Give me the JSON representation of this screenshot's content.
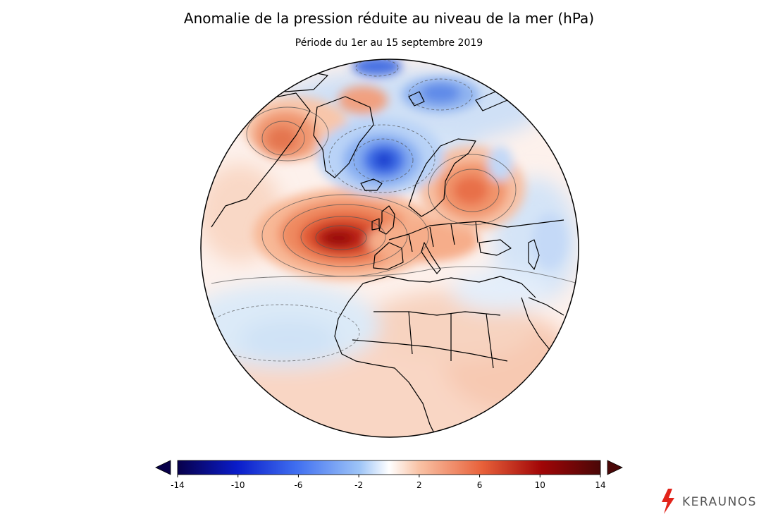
{
  "title": "Anomalie de la pression réduite au niveau de la mer (hPa)",
  "subtitle": "Période du 1er au 15 septembre 2019",
  "colorbar": {
    "min": -14,
    "max": 14,
    "ticks": [
      "-14",
      "-10",
      "-6",
      "-2",
      "2",
      "6",
      "10",
      "14"
    ],
    "colors": [
      "#08004a",
      "#0a1cc9",
      "#3f6ef0",
      "#9dc4f7",
      "#ffffff",
      "#f9c3a6",
      "#e8613a",
      "#a10607",
      "#4a0707"
    ]
  },
  "map": {
    "projection": "orthographic",
    "anomalies": [
      {
        "region": "Atlantique Nord-Est / Golfe de Gascogne",
        "sign": "positive",
        "peak_hpa": 12
      },
      {
        "region": "Russie occidentale",
        "sign": "positive",
        "peak_hpa": 7
      },
      {
        "region": "Canada arctique / Baffin",
        "sign": "positive",
        "peak_hpa": 6
      },
      {
        "region": "Mer de Norvège / Islande-Est",
        "sign": "negative",
        "peak_hpa": -10
      },
      {
        "region": "Arctique (Spitzberg, Nouvelle-Zemble)",
        "sign": "negative",
        "peak_hpa": -7
      },
      {
        "region": "Atlantique central",
        "sign": "negative",
        "peak_hpa": -2
      }
    ]
  },
  "logo": {
    "text": "KERAUNOS",
    "accent": "#e2231a"
  }
}
